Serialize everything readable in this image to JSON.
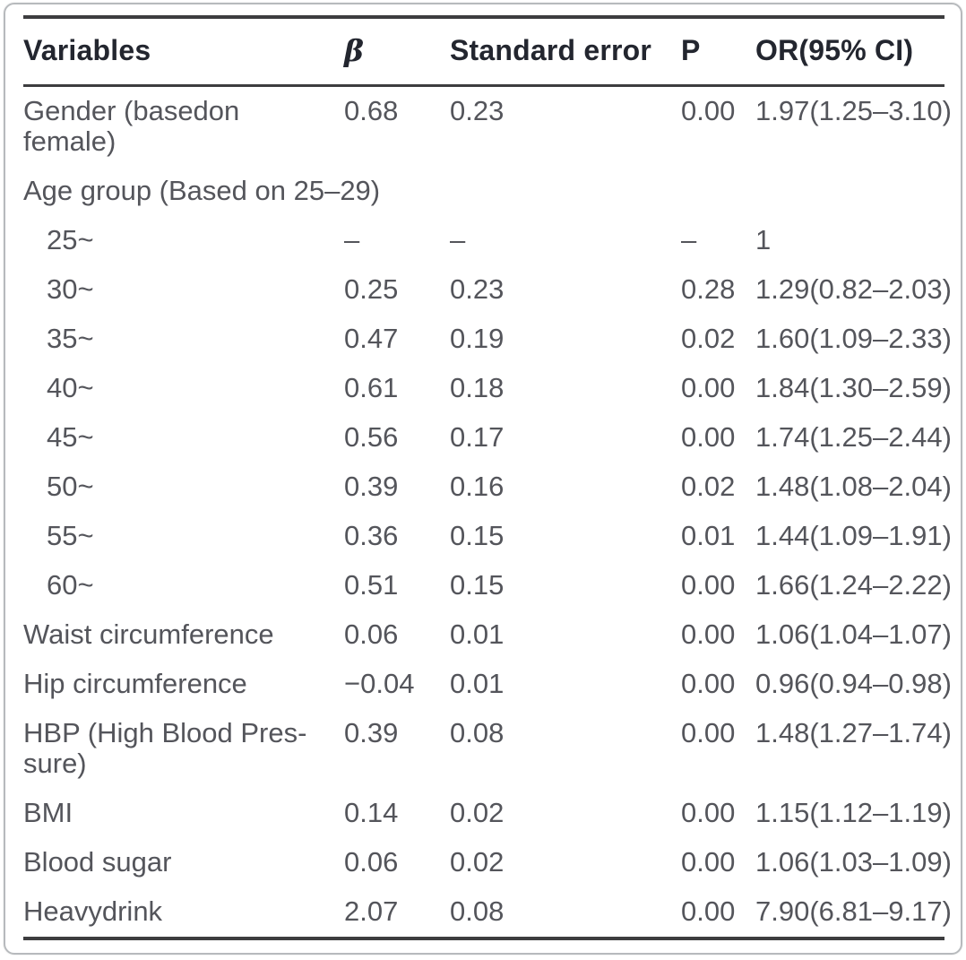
{
  "table": {
    "columns": {
      "variables": "Variables",
      "beta": "β",
      "standard_error": "Standard error",
      "p": "P",
      "or_ci": "OR(95% CI)"
    },
    "rows": [
      {
        "lines": [
          "Gender (basedon",
          "female)"
        ],
        "beta": "0.68",
        "se": "0.23",
        "p": "0.00",
        "or": "1.97(1.25–3.10)",
        "indent": false
      },
      {
        "lines": [
          "Age group (Based on 25–29)"
        ],
        "beta": "",
        "se": "",
        "p": "",
        "or": "",
        "indent": false
      },
      {
        "lines": [
          "25~"
        ],
        "beta": "–",
        "se": "–",
        "p": "–",
        "or": "1",
        "indent": true
      },
      {
        "lines": [
          "30~"
        ],
        "beta": "0.25",
        "se": "0.23",
        "p": "0.28",
        "or": "1.29(0.82–2.03)",
        "indent": true
      },
      {
        "lines": [
          "35~"
        ],
        "beta": "0.47",
        "se": "0.19",
        "p": "0.02",
        "or": "1.60(1.09–2.33)",
        "indent": true
      },
      {
        "lines": [
          "40~"
        ],
        "beta": "0.61",
        "se": "0.18",
        "p": "0.00",
        "or": "1.84(1.30–2.59)",
        "indent": true
      },
      {
        "lines": [
          "45~"
        ],
        "beta": "0.56",
        "se": "0.17",
        "p": "0.00",
        "or": "1.74(1.25–2.44)",
        "indent": true
      },
      {
        "lines": [
          "50~"
        ],
        "beta": "0.39",
        "se": "0.16",
        "p": "0.02",
        "or": "1.48(1.08–2.04)",
        "indent": true
      },
      {
        "lines": [
          "55~"
        ],
        "beta": "0.36",
        "se": "0.15",
        "p": "0.01",
        "or": "1.44(1.09–1.91)",
        "indent": true
      },
      {
        "lines": [
          "60~"
        ],
        "beta": "0.51",
        "se": "0.15",
        "p": "0.00",
        "or": "1.66(1.24–2.22)",
        "indent": true
      },
      {
        "lines": [
          "Waist circumference"
        ],
        "beta": "0.06",
        "se": "0.01",
        "p": "0.00",
        "or": "1.06(1.04–1.07)",
        "indent": false
      },
      {
        "lines": [
          "Hip circumference"
        ],
        "beta": "−0.04",
        "se": "0.01",
        "p": "0.00",
        "or": "0.96(0.94–0.98)",
        "indent": false
      },
      {
        "lines": [
          "HBP (High Blood Pres-",
          "sure)"
        ],
        "beta": "0.39",
        "se": "0.08",
        "p": "0.00",
        "or": "1.48(1.27–1.74)",
        "indent": false
      },
      {
        "lines": [
          "BMI"
        ],
        "beta": "0.14",
        "se": "0.02",
        "p": "0.00",
        "or": "1.15(1.12–1.19)",
        "indent": false
      },
      {
        "lines": [
          "Blood sugar"
        ],
        "beta": "0.06",
        "se": "0.02",
        "p": "0.00",
        "or": "1.06(1.03–1.09)",
        "indent": false
      },
      {
        "lines": [
          "Heavydrink"
        ],
        "beta": "2.07",
        "se": "0.08",
        "p": "0.00",
        "or": "7.90(6.81–9.17)",
        "indent": false
      }
    ]
  }
}
